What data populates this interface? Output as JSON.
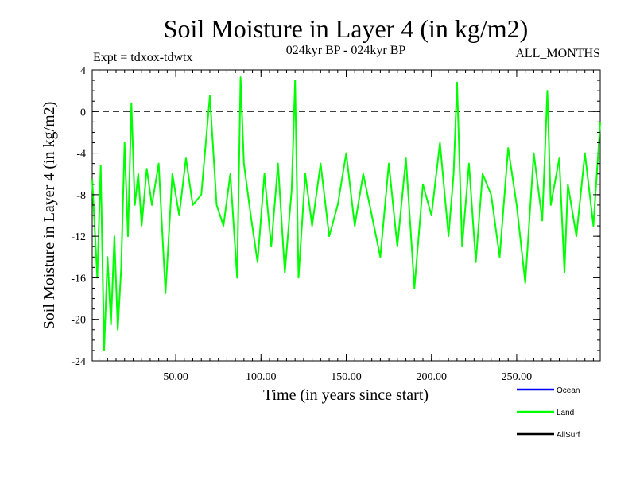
{
  "chart_data": {
    "type": "line",
    "title": "Soil Moisture in Layer 4 (in kg/m2)",
    "subtitle_left": "Expt = tdxox-tdwtx",
    "subtitle_center": "024kyr BP - 024kyr BP",
    "subtitle_right": "ALL_MONTHS",
    "xlabel": "Time (in years since start)",
    "ylabel": "Soil Moisture in Layer 4 (in kg/m2)",
    "xlim": [
      1,
      299
    ],
    "ylim": [
      -24,
      4
    ],
    "x_ticks": [
      50,
      100,
      150,
      200,
      250
    ],
    "x_tick_labels": [
      "50.00",
      "100.00",
      "150.00",
      "200.00",
      "250.00"
    ],
    "y_ticks": [
      4,
      0,
      -4,
      -8,
      -12,
      -16,
      -20,
      -24
    ],
    "y_tick_labels": [
      "4",
      "0",
      "-4",
      "-8",
      "-12",
      "-16",
      "-20",
      "-24"
    ],
    "reference_line": {
      "y": 0,
      "style": "dashed",
      "color": "#000000"
    },
    "legend": [
      {
        "label": "Ocean",
        "color": "#0000ff"
      },
      {
        "label": "Land",
        "color": "#00ff00"
      },
      {
        "label": "AllSurf",
        "color": "#000000"
      }
    ],
    "series": [
      {
        "name": "Land",
        "color": "#00ff00",
        "x": [
          1,
          4,
          6,
          8,
          10,
          12,
          14,
          16,
          18,
          20,
          22,
          24,
          26,
          28,
          30,
          33,
          36,
          40,
          44,
          48,
          52,
          56,
          60,
          65,
          70,
          74,
          78,
          82,
          86,
          88,
          90,
          94,
          98,
          102,
          106,
          110,
          114,
          118,
          120,
          122,
          126,
          130,
          135,
          140,
          145,
          150,
          155,
          160,
          165,
          170,
          175,
          180,
          185,
          190,
          195,
          200,
          205,
          210,
          213,
          215,
          218,
          222,
          226,
          230,
          235,
          240,
          245,
          250,
          255,
          260,
          265,
          268,
          270,
          275,
          278,
          280,
          285,
          290,
          295,
          299
        ],
        "y": [
          -6.5,
          -16.0,
          -5.2,
          -23.0,
          -14.0,
          -20.5,
          -12.0,
          -21.0,
          -15.0,
          -3.0,
          -12.0,
          0.8,
          -9.0,
          -6.0,
          -11.0,
          -5.5,
          -9.0,
          -5.0,
          -17.5,
          -6.0,
          -10.0,
          -4.5,
          -9.0,
          -8.0,
          1.5,
          -9.0,
          -11.0,
          -6.0,
          -16.0,
          3.3,
          -5.0,
          -10.0,
          -14.5,
          -6.0,
          -13.0,
          -5.0,
          -15.5,
          -7.5,
          3.0,
          -16.0,
          -6.0,
          -11.0,
          -5.0,
          -12.0,
          -9.0,
          -4.0,
          -11.0,
          -6.0,
          -10.0,
          -14.0,
          -5.0,
          -13.0,
          -4.5,
          -17.0,
          -7.0,
          -10.0,
          -3.0,
          -12.0,
          -6.0,
          2.8,
          -13.0,
          -5.0,
          -14.5,
          -6.0,
          -8.0,
          -14.0,
          -3.5,
          -9.0,
          -16.5,
          -4.0,
          -10.5,
          2.0,
          -9.0,
          -4.5,
          -15.5,
          -7.0,
          -12.0,
          -4.0,
          -11.0,
          -1.0
        ]
      }
    ]
  }
}
